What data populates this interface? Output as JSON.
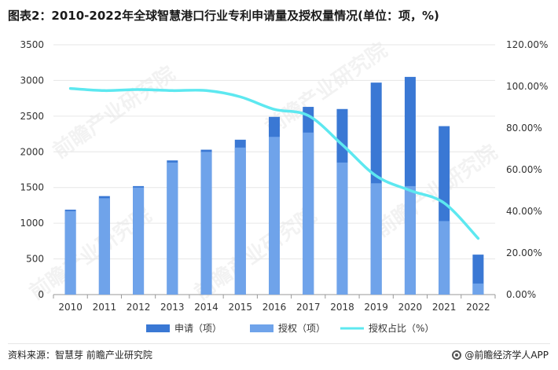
{
  "title": "图表2：2010-2022年全球智慧港口行业专利申请量及授权量情况(单位：项，%)",
  "source": "资料来源：智慧芽 前瞻产业研究院",
  "brand": "@前瞻经济学人APP",
  "watermark": "前瞻产业研究院",
  "colors": {
    "apply": "#3a78d4",
    "grant": "#6fa3ea",
    "ratio": "#5de8f0",
    "axis": "#999999",
    "grid": "#e6e6e6"
  },
  "chart_data": {
    "type": "bar",
    "categories": [
      "2010",
      "2011",
      "2012",
      "2013",
      "2014",
      "2015",
      "2016",
      "2017",
      "2018",
      "2019",
      "2020",
      "2021",
      "2022"
    ],
    "series": [
      {
        "name": "申请（项）",
        "type": "bar",
        "axis": "left",
        "values": [
          1190,
          1380,
          1520,
          1880,
          2030,
          2170,
          2490,
          2630,
          2600,
          2970,
          3050,
          2360,
          560
        ]
      },
      {
        "name": "授权（项）",
        "type": "bar",
        "axis": "left",
        "values": [
          1170,
          1350,
          1500,
          1850,
          2000,
          2060,
          2210,
          2270,
          1850,
          1560,
          1520,
          1030,
          155
        ]
      },
      {
        "name": "授权占比（%）",
        "type": "line",
        "axis": "right",
        "values": [
          99,
          98,
          98.5,
          98,
          98,
          95,
          89,
          86,
          72,
          57,
          50,
          44,
          27
        ]
      }
    ],
    "y_left": {
      "min": 0,
      "max": 3500,
      "ticks": [
        "0",
        "500",
        "1000",
        "1500",
        "2000",
        "2500",
        "3000",
        "3500"
      ]
    },
    "y_right": {
      "min": 0,
      "max": 120,
      "ticks": [
        "0.00%",
        "20.00%",
        "40.00%",
        "60.00%",
        "80.00%",
        "100.00%",
        "120.00%"
      ]
    },
    "legend_position": "bottom"
  }
}
